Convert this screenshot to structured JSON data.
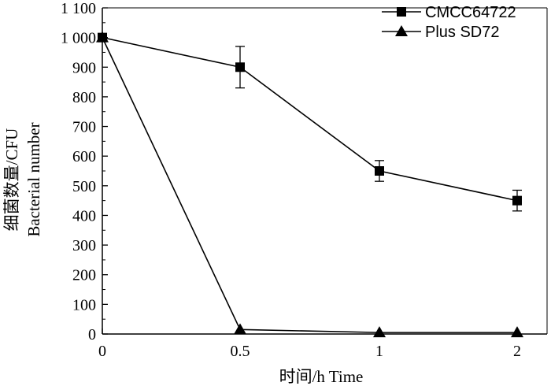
{
  "chart_data": {
    "type": "line",
    "categories": [
      "0",
      "0.5",
      "1",
      "2"
    ],
    "xlabel": "时间/h  Time",
    "ylabel_lines": [
      "细菌数量/CFU",
      "Bacterial number"
    ],
    "ylim": [
      0,
      1100
    ],
    "yticks": [
      0,
      100,
      200,
      300,
      400,
      500,
      600,
      700,
      800,
      900,
      1000,
      1100
    ],
    "ytick_labels": [
      "0",
      "100",
      "200",
      "300",
      "400",
      "500",
      "600",
      "700",
      "800",
      "900",
      "1 000",
      "1 100"
    ],
    "grid": false,
    "legend_position": "top-right",
    "series": [
      {
        "name": "CMCC64722",
        "marker": "square",
        "values": [
          1000,
          900,
          550,
          450
        ],
        "errors": [
          0,
          70,
          35,
          35
        ]
      },
      {
        "name": "Plus SD72",
        "marker": "triangle",
        "values": [
          1000,
          15,
          5,
          5
        ],
        "errors": [
          0,
          0,
          0,
          0
        ]
      }
    ]
  }
}
